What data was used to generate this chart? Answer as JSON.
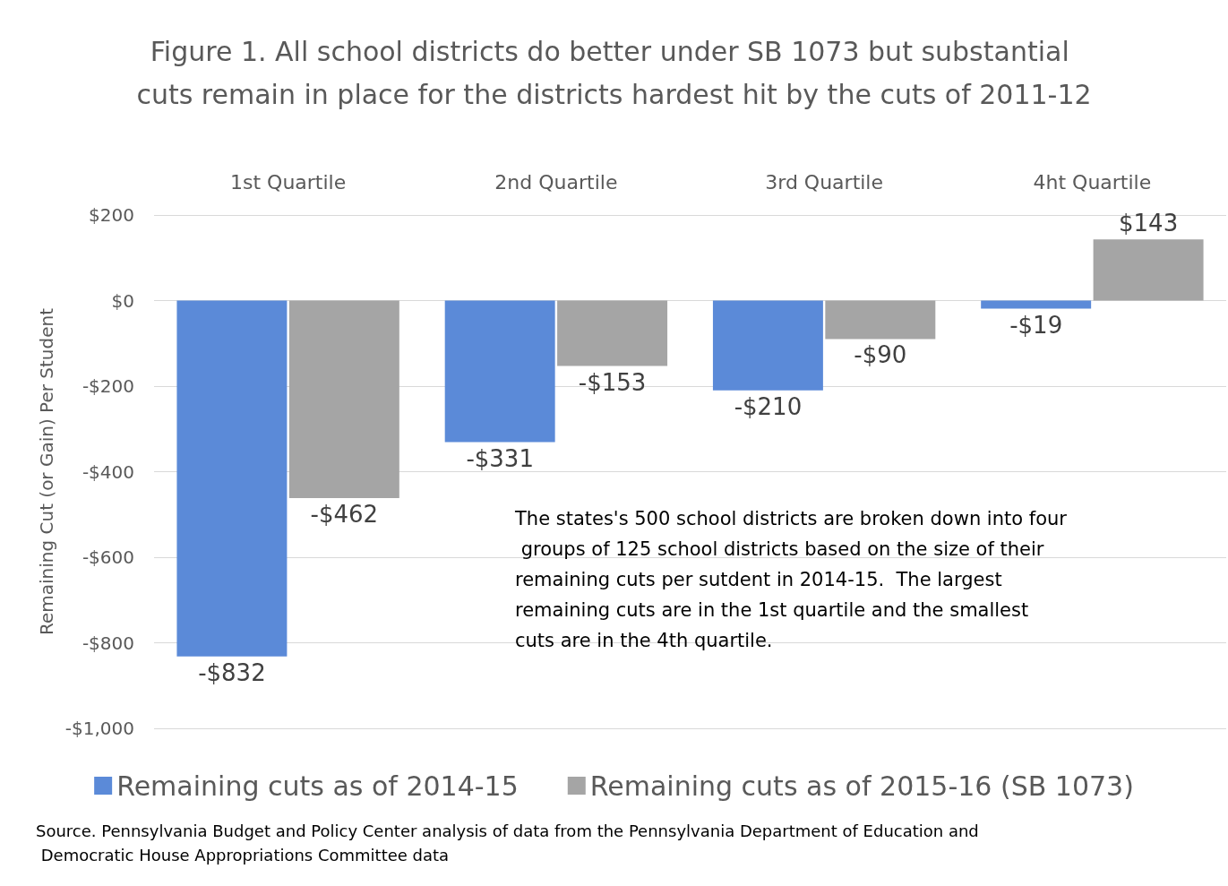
{
  "chart_data": {
    "type": "bar",
    "title": "Figure 1. All school districts do better under SB 1073 but substantial cuts remain in place for the districts hardest hit by the cuts of 2011-12",
    "ylabel": "Remaining Cut (or Gain) Per Student",
    "categories": [
      "1st Quartile",
      "2nd Quartile",
      "3rd Quartile",
      "4ht Quartile"
    ],
    "series": [
      {
        "name": "Remaining cuts as of 2014-15",
        "color": "#5b8ad8",
        "values": [
          -832,
          -331,
          -210,
          -19
        ],
        "value_labels": [
          "-$832",
          "-$331",
          "-$210",
          "-$19"
        ]
      },
      {
        "name": "Remaining cuts as of 2015-16 (SB 1073)",
        "color": "#a5a5a5",
        "values": [
          -462,
          -153,
          -90,
          143
        ],
        "value_labels": [
          "-$462",
          "-$153",
          "-$90",
          "$143"
        ]
      }
    ],
    "ylim": [
      -1000,
      200
    ],
    "yticks": [
      {
        "value": -1000,
        "label": "-$1,000"
      },
      {
        "value": -800,
        "label": "-$800"
      },
      {
        "value": -600,
        "label": "-$600"
      },
      {
        "value": -400,
        "label": "-$400"
      },
      {
        "value": -200,
        "label": "-$200"
      },
      {
        "value": 0,
        "label": "$0"
      },
      {
        "value": 200,
        "label": "$200"
      }
    ],
    "grid": "y",
    "legend": "bottom",
    "annotations": [
      "The states's 500 school districts are broken down into four groups of 125 school districts based on the size of their remaining cuts per sutdent in 2014-15.  The largest remaining cuts are in the 1st quartile and the smallest cuts are in the 4th quartile.",
      "Source. Pennsylvania Budget and Policy Center analysis of data from the Pennsylvania Department of Education and Democratic House Appropriations Committee data"
    ]
  }
}
